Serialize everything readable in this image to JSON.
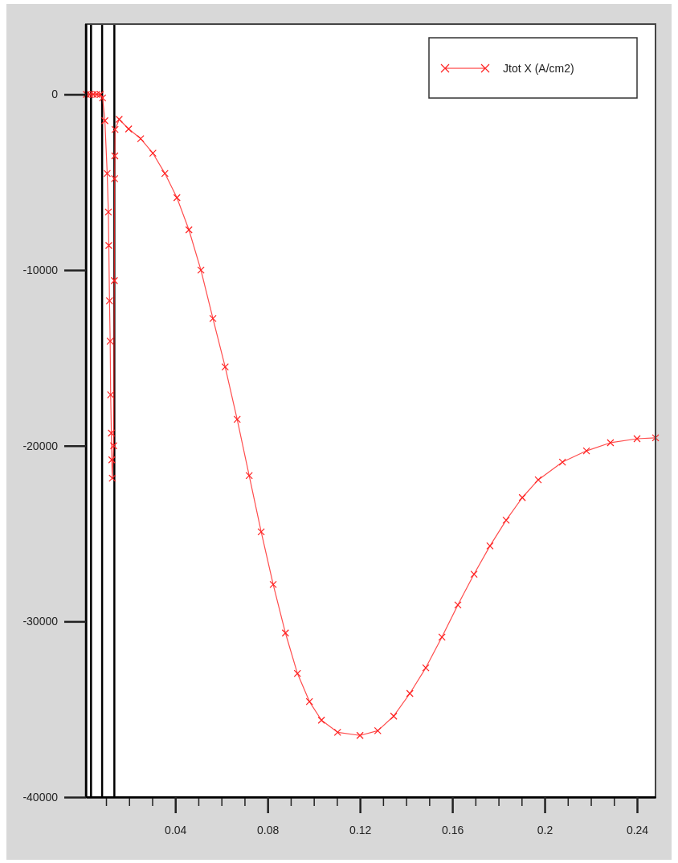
{
  "chart_data": {
    "type": "line",
    "xlim": [
      0.0013,
      0.248
    ],
    "xticks": [
      {
        "value": 0.01,
        "label": null
      },
      {
        "value": 0.02,
        "label": null
      },
      {
        "value": 0.03,
        "label": null
      },
      0.04,
      {
        "value": 0.05,
        "label": null
      },
      {
        "value": 0.06,
        "label": null
      },
      {
        "value": 0.07,
        "label": null
      },
      0.08,
      {
        "value": 0.09,
        "label": null
      },
      {
        "value": 0.1,
        "label": null
      },
      {
        "value": 0.11,
        "label": null
      },
      0.12,
      {
        "value": 0.13,
        "label": null
      },
      {
        "value": 0.14,
        "label": null
      },
      {
        "value": 0.15,
        "label": null
      },
      0.16,
      {
        "value": 0.17,
        "label": null
      },
      {
        "value": 0.18,
        "label": null
      },
      {
        "value": 0.19,
        "label": null
      },
      0.2,
      {
        "value": 0.21,
        "label": null
      },
      {
        "value": 0.22,
        "label": null
      },
      {
        "value": 0.23,
        "label": null
      },
      0.24
    ],
    "ylim": [
      -40000,
      4000
    ],
    "yticks": [
      -40000,
      -30000,
      -20000,
      -10000,
      0
    ],
    "grid": false,
    "legend": "top right",
    "marker": "cross",
    "line_style": "solid",
    "ref_lines": [
      {
        "axis": "x",
        "value": 0.0035,
        "color": "#000000"
      },
      {
        "axis": "x",
        "value": 0.0083,
        "color": "#000000"
      },
      {
        "axis": "x",
        "value": 0.0136,
        "color": "#000000"
      }
    ],
    "series": [
      {
        "name": "Jtot X (A/cm2)",
        "color": "#ff2020",
        "x": [
          0.0015,
          0.003,
          0.0045,
          0.006,
          0.0075,
          0.0085,
          0.0095,
          0.0105,
          0.011,
          0.0112,
          0.0115,
          0.0118,
          0.012,
          0.0123,
          0.0125,
          0.0127,
          0.0133,
          0.0136,
          0.0137,
          0.0138,
          0.0139,
          0.0157,
          0.0198,
          0.025,
          0.0303,
          0.0355,
          0.0407,
          0.0459,
          0.0511,
          0.0563,
          0.0616,
          0.0668,
          0.072,
          0.0772,
          0.0824,
          0.0877,
          0.0929,
          0.0981,
          0.1033,
          0.1103,
          0.12,
          0.1277,
          0.1346,
          0.1416,
          0.1485,
          0.1555,
          0.1624,
          0.1694,
          0.1763,
          0.1833,
          0.1903,
          0.1972,
          0.2077,
          0.2181,
          0.2285,
          0.24,
          0.248
        ],
        "values": [
          0,
          0,
          0,
          0,
          0,
          -200,
          -1500,
          -4500,
          -6700,
          -8600,
          -11750,
          -14050,
          -17100,
          -19280,
          -20800,
          -21850,
          -20000,
          -10600,
          -4800,
          -3500,
          -2000,
          -1420,
          -1970,
          -2520,
          -3350,
          -4500,
          -5880,
          -7710,
          -10000,
          -12760,
          -15510,
          -18500,
          -21700,
          -24900,
          -27900,
          -30660,
          -32960,
          -34560,
          -35620,
          -36310,
          -36490,
          -36220,
          -35390,
          -34100,
          -32640,
          -30890,
          -29060,
          -27310,
          -25700,
          -24240,
          -22950,
          -21940,
          -20930,
          -20290,
          -19830,
          -19600,
          -19550
        ]
      }
    ]
  }
}
